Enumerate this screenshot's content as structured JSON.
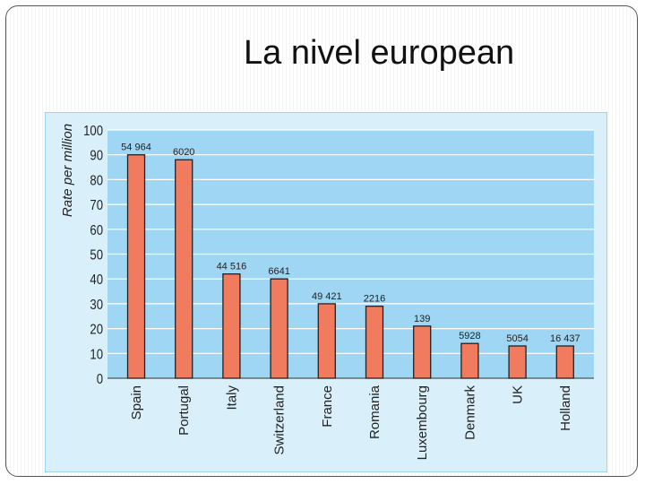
{
  "slide": {
    "title": "La nivel european"
  },
  "chart_data": {
    "type": "bar",
    "title": "",
    "xlabel": "",
    "ylabel": "Rate per million",
    "ylim": [
      0,
      100
    ],
    "yticks": [
      0,
      10,
      20,
      30,
      40,
      50,
      60,
      70,
      80,
      90,
      100
    ],
    "categories": [
      "Spain",
      "Portugal",
      "Italy",
      "Switzerland",
      "France",
      "Romania",
      "Luxembourg",
      "Denmark",
      "UK",
      "Holland"
    ],
    "values": [
      90,
      88,
      42,
      40,
      30,
      29,
      21,
      14,
      13,
      13
    ],
    "data_labels": [
      "54 964",
      "6020",
      "44 516",
      "6641",
      "49 421",
      "2216",
      "139",
      "5928",
      "5054",
      "16 437"
    ],
    "grid": true,
    "colors": {
      "bar": "#f07b5e",
      "bar_stroke": "#222222",
      "plot_bg": "#9fd6f3",
      "panel_bg": "#d9effa",
      "grid": "#ffffff",
      "text": "#222222"
    }
  }
}
